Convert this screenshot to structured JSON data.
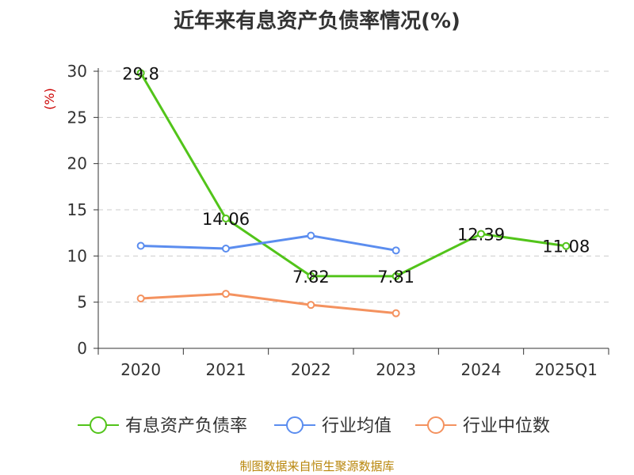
{
  "page": {
    "source": "制图数据来自恒生聚源数据库"
  },
  "chart_data": {
    "type": "line",
    "title": "近年来有息资产负债率情况(%)",
    "ylabel": "(%)",
    "xlabel": "",
    "categories": [
      "2020",
      "2021",
      "2022",
      "2023",
      "2024",
      "2025Q1"
    ],
    "ylim": [
      0,
      30
    ],
    "yticks": [
      0,
      5,
      10,
      15,
      20,
      25,
      30
    ],
    "grid": true,
    "legend_position": "bottom",
    "series": [
      {
        "name": "有息资产负债率",
        "color": "#52c41a",
        "values": [
          29.8,
          14.06,
          7.82,
          7.81,
          12.39,
          11.08
        ],
        "labels": [
          "29.8",
          "14.06",
          "7.82",
          "7.81",
          "12.39",
          "11.08"
        ]
      },
      {
        "name": "行业均值",
        "color": "#5b8def",
        "values": [
          11.1,
          10.8,
          12.2,
          10.6,
          null,
          null
        ]
      },
      {
        "name": "行业中位数",
        "color": "#f4925f",
        "values": [
          5.4,
          5.9,
          4.7,
          3.8,
          null,
          null
        ]
      }
    ]
  }
}
